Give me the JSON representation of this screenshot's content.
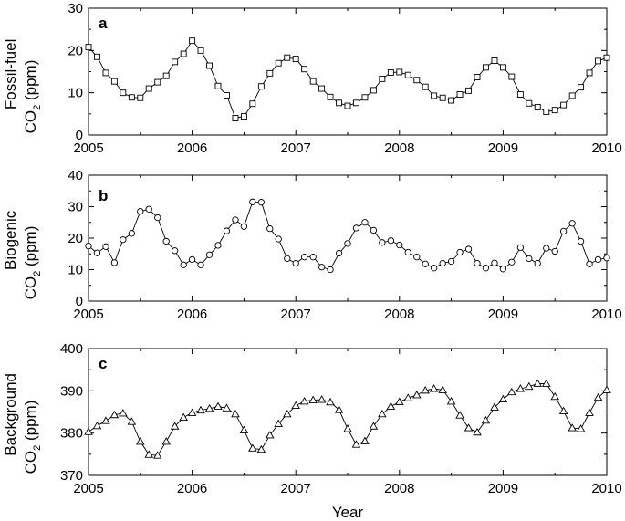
{
  "chart_data": [
    {
      "type": "line",
      "panel": "a",
      "ylabel_line1": "Fossil-fuel",
      "ylabel_line2": "CO",
      "ylabel_sub": "2",
      "ylabel_unit": " (ppm)",
      "xlabel": "",
      "xlim": [
        2005,
        2010
      ],
      "ylim": [
        0,
        30
      ],
      "yticks": [
        0,
        10,
        20,
        30
      ],
      "xticks": [
        2005,
        2006,
        2007,
        2008,
        2009,
        2010
      ],
      "marker": "square",
      "x": [
        2005.0,
        2005.083,
        2005.167,
        2005.25,
        2005.333,
        2005.417,
        2005.5,
        2005.583,
        2005.667,
        2005.75,
        2005.833,
        2005.917,
        2006.0,
        2006.083,
        2006.167,
        2006.25,
        2006.333,
        2006.417,
        2006.5,
        2006.583,
        2006.667,
        2006.75,
        2006.833,
        2006.917,
        2007.0,
        2007.083,
        2007.167,
        2007.25,
        2007.333,
        2007.417,
        2007.5,
        2007.583,
        2007.667,
        2007.75,
        2007.833,
        2007.917,
        2008.0,
        2008.083,
        2008.167,
        2008.25,
        2008.333,
        2008.417,
        2008.5,
        2008.583,
        2008.667,
        2008.75,
        2008.833,
        2008.917,
        2009.0,
        2009.083,
        2009.167,
        2009.25,
        2009.333,
        2009.417,
        2009.5,
        2009.583,
        2009.667,
        2009.75,
        2009.833,
        2009.917,
        2010.0
      ],
      "y": [
        20.8,
        18.5,
        14.7,
        12.7,
        10.0,
        8.9,
        8.8,
        11.0,
        12.5,
        14.0,
        17.3,
        19.2,
        22.3,
        20.0,
        16.4,
        11.6,
        9.4,
        4.0,
        4.4,
        7.4,
        11.5,
        14.6,
        17.0,
        18.3,
        18.0,
        15.6,
        12.7,
        11.0,
        9.0,
        7.6,
        6.9,
        7.6,
        8.9,
        10.6,
        13.3,
        14.8,
        14.9,
        14.2,
        13.0,
        11.4,
        9.3,
        8.8,
        8.2,
        9.6,
        10.5,
        13.7,
        16.0,
        17.6,
        16.0,
        13.8,
        9.6,
        7.5,
        6.6,
        5.5,
        5.9,
        7.1,
        9.3,
        11.3,
        14.7,
        17.5,
        18.3
      ]
    },
    {
      "type": "line",
      "panel": "b",
      "ylabel_line1": "Biogenic",
      "ylabel_line2": "CO",
      "ylabel_sub": "2",
      "ylabel_unit": " (ppm)",
      "xlabel": "",
      "xlim": [
        2005,
        2010
      ],
      "ylim": [
        0,
        40
      ],
      "yticks": [
        0,
        10,
        20,
        30,
        40
      ],
      "xticks": [
        2005,
        2006,
        2007,
        2008,
        2009,
        2010
      ],
      "marker": "circle",
      "x": [
        2005.0,
        2005.083,
        2005.167,
        2005.25,
        2005.333,
        2005.417,
        2005.5,
        2005.583,
        2005.667,
        2005.75,
        2005.833,
        2005.917,
        2006.0,
        2006.083,
        2006.167,
        2006.25,
        2006.333,
        2006.417,
        2006.5,
        2006.583,
        2006.667,
        2006.75,
        2006.833,
        2006.917,
        2007.0,
        2007.083,
        2007.167,
        2007.25,
        2007.333,
        2007.417,
        2007.5,
        2007.583,
        2007.667,
        2007.75,
        2007.833,
        2007.917,
        2008.0,
        2008.083,
        2008.167,
        2008.25,
        2008.333,
        2008.417,
        2008.5,
        2008.583,
        2008.667,
        2008.75,
        2008.833,
        2008.917,
        2009.0,
        2009.083,
        2009.167,
        2009.25,
        2009.333,
        2009.417,
        2009.5,
        2009.583,
        2009.667,
        2009.75,
        2009.833,
        2009.917,
        2010.0
      ],
      "y": [
        17.5,
        15.3,
        17.3,
        12.2,
        19.5,
        21.5,
        28.5,
        29.2,
        26.5,
        19.0,
        16.0,
        11.5,
        13.2,
        11.5,
        14.7,
        17.7,
        22.3,
        25.8,
        23.7,
        31.5,
        31.4,
        23.0,
        19.7,
        13.5,
        12.0,
        14.0,
        14.0,
        10.8,
        10.0,
        15.2,
        18.3,
        23.2,
        25.0,
        22.5,
        18.6,
        19.2,
        17.8,
        15.5,
        14.0,
        11.8,
        10.5,
        12.0,
        12.6,
        15.5,
        16.5,
        12.0,
        10.5,
        12.1,
        10.2,
        12.4,
        17.0,
        13.5,
        12.0,
        16.8,
        15.8,
        22.2,
        24.7,
        19.0,
        11.8,
        13.2,
        13.7
      ]
    },
    {
      "type": "line",
      "panel": "c",
      "ylabel_line1": "Background",
      "ylabel_line2": "CO",
      "ylabel_sub": "2",
      "ylabel_unit": " (ppm)",
      "xlabel": "Year",
      "xlim": [
        2005,
        2010
      ],
      "ylim": [
        370,
        400
      ],
      "yticks": [
        370,
        380,
        390,
        400
      ],
      "xticks": [
        2005,
        2006,
        2007,
        2008,
        2009,
        2010
      ],
      "marker": "triangle",
      "x": [
        2005.0,
        2005.083,
        2005.167,
        2005.25,
        2005.333,
        2005.417,
        2005.5,
        2005.583,
        2005.667,
        2005.75,
        2005.833,
        2005.917,
        2006.0,
        2006.083,
        2006.167,
        2006.25,
        2006.333,
        2006.417,
        2006.5,
        2006.583,
        2006.667,
        2006.75,
        2006.833,
        2006.917,
        2007.0,
        2007.083,
        2007.167,
        2007.25,
        2007.333,
        2007.417,
        2007.5,
        2007.583,
        2007.667,
        2007.75,
        2007.833,
        2007.917,
        2008.0,
        2008.083,
        2008.167,
        2008.25,
        2008.333,
        2008.417,
        2008.5,
        2008.583,
        2008.667,
        2008.75,
        2008.833,
        2008.917,
        2009.0,
        2009.083,
        2009.167,
        2009.25,
        2009.333,
        2009.417,
        2009.5,
        2009.583,
        2009.667,
        2009.75,
        2009.833,
        2009.917,
        2010.0
      ],
      "y": [
        380.3,
        381.7,
        382.9,
        384.3,
        384.7,
        382.7,
        378.0,
        374.9,
        374.7,
        378.0,
        381.6,
        383.7,
        384.8,
        385.4,
        385.8,
        386.3,
        385.9,
        384.5,
        380.7,
        376.4,
        376.1,
        379.5,
        382.2,
        384.5,
        386.5,
        387.5,
        387.8,
        387.9,
        387.3,
        385.5,
        381.0,
        377.3,
        378.1,
        381.6,
        384.5,
        386.3,
        387.4,
        388.3,
        389.0,
        390.1,
        390.5,
        390.2,
        387.5,
        384.2,
        381.2,
        380.2,
        383.0,
        386.1,
        388.0,
        389.7,
        390.5,
        391.0,
        391.7,
        391.7,
        388.6,
        385.2,
        381.2,
        381.0,
        384.8,
        388.4,
        390.2
      ]
    }
  ]
}
